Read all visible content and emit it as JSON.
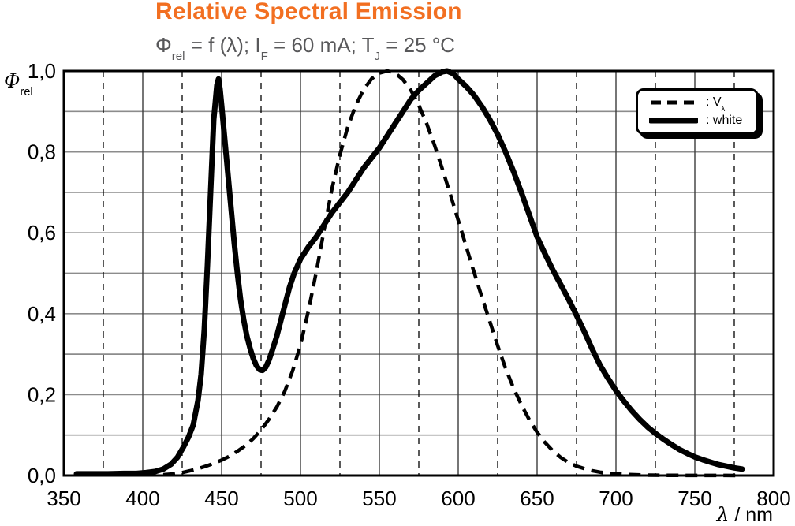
{
  "title": "Relative Spectral Emission",
  "subtitle": {
    "parts": [
      {
        "t": "Φ"
      },
      {
        "t": "rel",
        "sub": true
      },
      {
        "t": " = f (λ); I"
      },
      {
        "t": "F",
        "sub": true
      },
      {
        "t": " = 60 mA; T"
      },
      {
        "t": "J",
        "sub": true
      },
      {
        "t": " = 25 °C"
      }
    ]
  },
  "colors": {
    "title_orange": "#F26F21",
    "subtitle_gray": "#58585A",
    "grid_gray": "#8C8C8C",
    "axis_black": "#000000"
  },
  "y_axis": {
    "label_parts": [
      {
        "t": "Φ",
        "italic": true
      },
      {
        "t": "rel",
        "sub": true
      }
    ],
    "tick_labels": [
      "1,0",
      "0,8",
      "0,6",
      "0,4",
      "0,2",
      "0,0"
    ],
    "tick_values": [
      1.0,
      0.8,
      0.6,
      0.4,
      0.2,
      0.0
    ]
  },
  "x_axis": {
    "label_parts": [
      {
        "t": "λ",
        "italic": true
      },
      {
        "t": " / nm"
      }
    ],
    "tick_labels": [
      "350",
      "400",
      "450",
      "500",
      "550",
      "600",
      "650",
      "700",
      "750",
      "800"
    ],
    "tick_values": [
      350,
      400,
      450,
      500,
      550,
      600,
      650,
      700,
      750,
      800
    ]
  },
  "legend": {
    "items": [
      {
        "id": "vlambda",
        "style": "dashed",
        "label_parts": [
          {
            "t": ": V"
          },
          {
            "t": "λ",
            "sub": true
          }
        ]
      },
      {
        "id": "white",
        "style": "solid",
        "label_parts": [
          {
            "t": ": white"
          }
        ]
      }
    ]
  },
  "chart_data": {
    "type": "line",
    "title": "Relative Spectral Emission",
    "subtitle_text": "Φrel = f (λ); IF = 60 mA; TJ = 25 °C",
    "xlabel": "λ / nm",
    "ylabel": "Φrel",
    "xlim": [
      350,
      800
    ],
    "ylim": [
      0,
      1.0
    ],
    "x_major_step": 50,
    "x_minor_step": 25,
    "y_grid_step": 0.1,
    "grid": "horizontal solid gray lines every 0.1; vertical solid lines every 50 nm, vertical dashed lines at 25 nm midpoints",
    "legend_position": "top-right",
    "series": [
      {
        "name": "V_lambda",
        "style": "dashed",
        "points": [
          [
            413,
            0.002
          ],
          [
            420,
            0.004
          ],
          [
            425,
            0.0073
          ],
          [
            430,
            0.0116
          ],
          [
            435,
            0.0168
          ],
          [
            440,
            0.023
          ],
          [
            445,
            0.0298
          ],
          [
            450,
            0.038
          ],
          [
            455,
            0.048
          ],
          [
            460,
            0.06
          ],
          [
            465,
            0.0739
          ],
          [
            470,
            0.091
          ],
          [
            475,
            0.1126
          ],
          [
            480,
            0.139
          ],
          [
            485,
            0.1693
          ],
          [
            490,
            0.208
          ],
          [
            495,
            0.2586
          ],
          [
            500,
            0.323
          ],
          [
            505,
            0.4073
          ],
          [
            510,
            0.503
          ],
          [
            515,
            0.6082
          ],
          [
            520,
            0.71
          ],
          [
            525,
            0.7932
          ],
          [
            530,
            0.862
          ],
          [
            535,
            0.9149
          ],
          [
            540,
            0.954
          ],
          [
            545,
            0.9803
          ],
          [
            550,
            0.995
          ],
          [
            555,
            1.0
          ],
          [
            560,
            0.995
          ],
          [
            565,
            0.9786
          ],
          [
            570,
            0.952
          ],
          [
            575,
            0.9154
          ],
          [
            580,
            0.87
          ],
          [
            585,
            0.8163
          ],
          [
            590,
            0.757
          ],
          [
            595,
            0.6949
          ],
          [
            600,
            0.631
          ],
          [
            605,
            0.5668
          ],
          [
            610,
            0.503
          ],
          [
            615,
            0.4412
          ],
          [
            620,
            0.381
          ],
          [
            625,
            0.321
          ],
          [
            630,
            0.265
          ],
          [
            635,
            0.217
          ],
          [
            640,
            0.175
          ],
          [
            645,
            0.1382
          ],
          [
            650,
            0.107
          ],
          [
            655,
            0.0816
          ],
          [
            660,
            0.061
          ],
          [
            665,
            0.0446
          ],
          [
            670,
            0.032
          ],
          [
            675,
            0.0232
          ],
          [
            680,
            0.017
          ],
          [
            685,
            0.0119
          ],
          [
            690,
            0.0082
          ],
          [
            695,
            0.0057
          ],
          [
            700,
            0.0041
          ],
          [
            710,
            0.0021
          ],
          [
            720,
            0.001
          ],
          [
            730,
            0.0005
          ],
          [
            740,
            0.0003
          ],
          [
            750,
            0.0002
          ],
          [
            760,
            0.0001
          ],
          [
            770,
            0.0001
          ],
          [
            780,
            0.0
          ]
        ]
      },
      {
        "name": "white",
        "style": "solid",
        "points": [
          [
            358,
            0.004
          ],
          [
            368,
            0.004
          ],
          [
            378,
            0.004
          ],
          [
            388,
            0.005
          ],
          [
            396,
            0.005
          ],
          [
            402,
            0.007
          ],
          [
            408,
            0.01
          ],
          [
            413,
            0.016
          ],
          [
            418,
            0.028
          ],
          [
            422,
            0.045
          ],
          [
            426,
            0.072
          ],
          [
            429,
            0.095
          ],
          [
            432,
            0.125
          ],
          [
            435,
            0.185
          ],
          [
            437,
            0.25
          ],
          [
            439,
            0.36
          ],
          [
            441,
            0.52
          ],
          [
            443,
            0.7
          ],
          [
            445,
            0.88
          ],
          [
            447,
            0.965
          ],
          [
            448,
            0.98
          ],
          [
            449,
            0.955
          ],
          [
            450,
            0.915
          ],
          [
            452,
            0.83
          ],
          [
            454,
            0.745
          ],
          [
            456,
            0.66
          ],
          [
            458,
            0.575
          ],
          [
            460,
            0.5
          ],
          [
            462,
            0.435
          ],
          [
            464,
            0.385
          ],
          [
            466,
            0.345
          ],
          [
            468,
            0.315
          ],
          [
            470,
            0.29
          ],
          [
            472,
            0.272
          ],
          [
            474,
            0.262
          ],
          [
            476,
            0.26
          ],
          [
            478,
            0.268
          ],
          [
            480,
            0.285
          ],
          [
            482,
            0.308
          ],
          [
            485,
            0.345
          ],
          [
            488,
            0.39
          ],
          [
            490,
            0.42
          ],
          [
            493,
            0.465
          ],
          [
            496,
            0.5
          ],
          [
            500,
            0.535
          ],
          [
            505,
            0.565
          ],
          [
            510,
            0.59
          ],
          [
            515,
            0.62
          ],
          [
            520,
            0.65
          ],
          [
            525,
            0.675
          ],
          [
            530,
            0.7
          ],
          [
            535,
            0.73
          ],
          [
            540,
            0.76
          ],
          [
            545,
            0.785
          ],
          [
            550,
            0.81
          ],
          [
            555,
            0.84
          ],
          [
            560,
            0.87
          ],
          [
            565,
            0.9
          ],
          [
            570,
            0.93
          ],
          [
            575,
            0.952
          ],
          [
            580,
            0.97
          ],
          [
            585,
            0.988
          ],
          [
            590,
            0.998
          ],
          [
            593,
            1.0
          ],
          [
            597,
            0.993
          ],
          [
            600,
            0.98
          ],
          [
            605,
            0.962
          ],
          [
            610,
            0.94
          ],
          [
            615,
            0.912
          ],
          [
            620,
            0.88
          ],
          [
            625,
            0.843
          ],
          [
            630,
            0.8
          ],
          [
            635,
            0.752
          ],
          [
            640,
            0.7
          ],
          [
            645,
            0.645
          ],
          [
            650,
            0.59
          ],
          [
            655,
            0.548
          ],
          [
            660,
            0.508
          ],
          [
            665,
            0.472
          ],
          [
            670,
            0.435
          ],
          [
            675,
            0.396
          ],
          [
            680,
            0.355
          ],
          [
            685,
            0.312
          ],
          [
            690,
            0.272
          ],
          [
            695,
            0.24
          ],
          [
            700,
            0.21
          ],
          [
            705,
            0.184
          ],
          [
            710,
            0.16
          ],
          [
            715,
            0.139
          ],
          [
            720,
            0.12
          ],
          [
            725,
            0.104
          ],
          [
            730,
            0.09
          ],
          [
            735,
            0.077
          ],
          [
            740,
            0.065
          ],
          [
            745,
            0.055
          ],
          [
            750,
            0.046
          ],
          [
            755,
            0.039
          ],
          [
            760,
            0.033
          ],
          [
            765,
            0.027
          ],
          [
            770,
            0.023
          ],
          [
            775,
            0.019
          ],
          [
            780,
            0.016
          ]
        ]
      }
    ]
  }
}
